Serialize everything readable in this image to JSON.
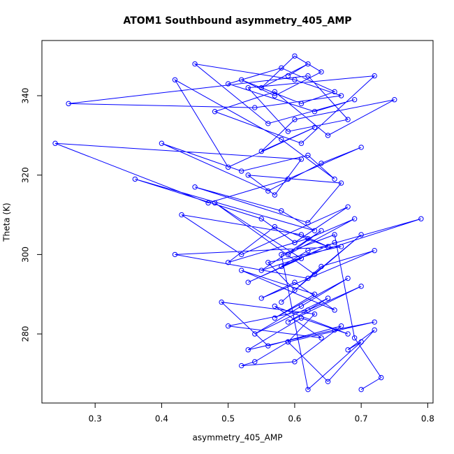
{
  "chart_data": {
    "type": "line",
    "markers": "circle",
    "title": "ATOM1 Southbound asymmetry_405_AMP",
    "xlabel": "asymmetry_405_AMP",
    "ylabel": "Theta (K)",
    "color": "#0000ff",
    "xlim": [
      0.22,
      0.808
    ],
    "ylim": [
      262.6,
      353.9
    ],
    "xticks": [
      0.3,
      0.4,
      0.5,
      0.6,
      0.7,
      0.8
    ],
    "yticks": [
      280,
      300,
      320,
      340
    ],
    "x": [
      0.59,
      0.62,
      0.55,
      0.6,
      0.64,
      0.57,
      0.52,
      0.61,
      0.66,
      0.58,
      0.5,
      0.63,
      0.69,
      0.56,
      0.45,
      0.6,
      0.67,
      0.54,
      0.26,
      0.62,
      0.68,
      0.59,
      0.53,
      0.72,
      0.61,
      0.48,
      0.57,
      0.65,
      0.75,
      0.6,
      0.55,
      0.63,
      0.5,
      0.42,
      0.58,
      0.66,
      0.62,
      0.52,
      0.4,
      0.56,
      0.64,
      0.7,
      0.59,
      0.47,
      0.24,
      0.61,
      0.57,
      0.53,
      0.67,
      0.62,
      0.45,
      0.58,
      0.63,
      0.36,
      0.55,
      0.6,
      0.68,
      0.52,
      0.43,
      0.61,
      0.65,
      0.57,
      0.5,
      0.62,
      0.69,
      0.59,
      0.64,
      0.55,
      0.79,
      0.62,
      0.58,
      0.66,
      0.53,
      0.61,
      0.48,
      0.63,
      0.7,
      0.6,
      0.56,
      0.67,
      0.42,
      0.62,
      0.58,
      0.64,
      0.72,
      0.55,
      0.6,
      0.66,
      0.52,
      0.63,
      0.57,
      0.68,
      0.61,
      0.54,
      0.65,
      0.59,
      0.7,
      0.62,
      0.5,
      0.64,
      0.57,
      0.68,
      0.61,
      0.53,
      0.66,
      0.72,
      0.59,
      0.63,
      0.49,
      0.56,
      0.67,
      0.6,
      0.52,
      0.54,
      0.59,
      0.65,
      0.72,
      0.68,
      0.7,
      0.62,
      0.58,
      0.66,
      0.69,
      0.73,
      0.7
    ],
    "values": [
      345,
      348,
      342,
      350,
      346,
      340,
      344,
      338,
      341,
      347,
      343,
      336,
      339,
      333,
      348,
      344,
      340,
      337,
      338,
      345,
      334,
      331,
      342,
      345,
      328,
      336,
      341,
      330,
      339,
      334,
      326,
      332,
      322,
      344,
      329,
      319,
      325,
      321,
      328,
      316,
      323,
      327,
      319,
      313,
      328,
      324,
      315,
      320,
      318,
      308,
      317,
      311,
      306,
      319,
      309,
      303,
      312,
      300,
      310,
      305,
      302,
      307,
      298,
      304,
      309,
      300,
      306,
      296,
      309,
      301,
      297,
      303,
      293,
      299,
      313,
      295,
      305,
      291,
      298,
      302,
      300,
      294,
      288,
      297,
      301,
      289,
      293,
      286,
      296,
      290,
      284,
      294,
      287,
      280,
      289,
      283,
      292,
      286,
      282,
      279,
      287,
      280,
      284,
      276,
      281,
      283,
      278,
      285,
      288,
      277,
      282,
      273,
      272,
      273,
      278,
      268,
      281,
      276,
      278,
      266,
      300,
      305,
      279,
      269,
      266
    ]
  }
}
